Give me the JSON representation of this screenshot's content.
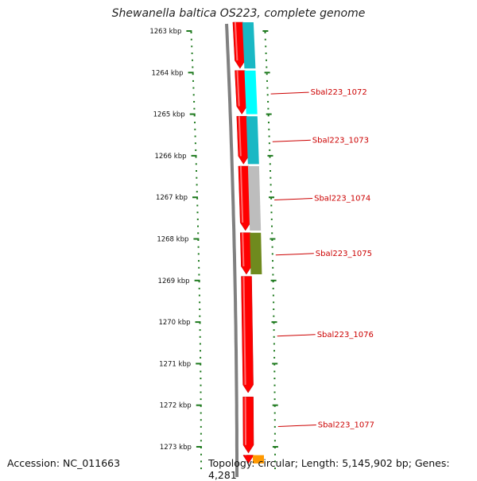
{
  "title": "Shewanella baltica OS223, complete genome",
  "footer": {
    "accession": "Accession: NC_011663",
    "topology": "Topology: circular; Length: 5,145,902 bp; Genes: 4,281"
  },
  "colors": {
    "forward_gene": "#ff0000",
    "backbone": "#808080",
    "ticks": "#1f7a1f",
    "label": "#cc0000",
    "category_cyan_dark": "#1ab8c4",
    "category_cyan_light": "#00ffff",
    "category_grey": "#bdbdbd",
    "category_olive": "#6f8a1e",
    "category_orange": "#ff9900"
  },
  "chart_data": {
    "type": "genome-map",
    "axis": {
      "unit": "kbp",
      "min": 1262.5,
      "max": 1273.4,
      "ticks": [
        1263,
        1264,
        1265,
        1266,
        1267,
        1268,
        1269,
        1270,
        1271,
        1272,
        1273
      ]
    },
    "genes": [
      {
        "start": 1262.6,
        "end": 1263.9,
        "strand": "+",
        "category": "category_cyan_dark",
        "label": ""
      },
      {
        "start": 1263.95,
        "end": 1265.0,
        "strand": "+",
        "category": "category_cyan_light",
        "label": "Sbal223_1072"
      },
      {
        "start": 1265.05,
        "end": 1266.2,
        "strand": "+",
        "category": "category_cyan_dark",
        "label": "Sbal223_1073"
      },
      {
        "start": 1266.25,
        "end": 1267.8,
        "strand": "+",
        "category": "category_grey",
        "label": "Sbal223_1074"
      },
      {
        "start": 1267.85,
        "end": 1268.85,
        "strand": "+",
        "category": "category_olive",
        "label": "Sbal223_1075"
      },
      {
        "start": 1268.9,
        "end": 1271.7,
        "strand": "+",
        "category": "",
        "label": "Sbal223_1076"
      },
      {
        "start": 1271.8,
        "end": 1273.15,
        "strand": "+",
        "category": "",
        "label": "Sbal223_1077"
      },
      {
        "start": 1273.2,
        "end": 1273.4,
        "strand": "+",
        "category": "category_orange",
        "label": ""
      }
    ]
  }
}
